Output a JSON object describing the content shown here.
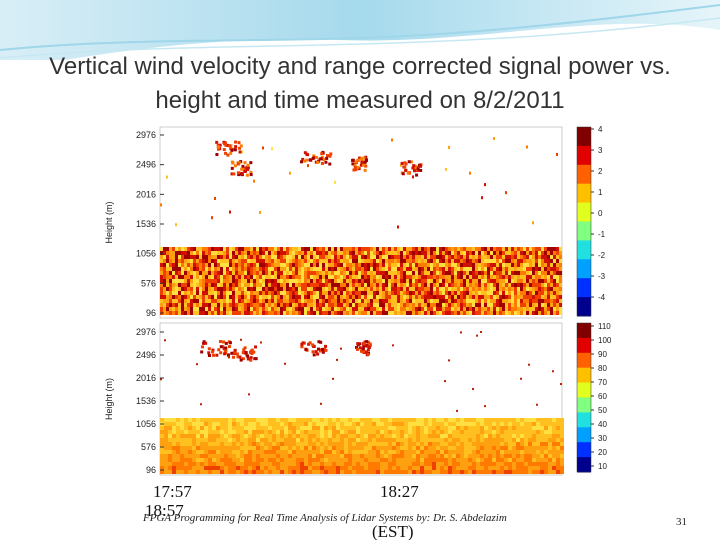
{
  "title": "Vertical wind velocity and range corrected signal power vs. height and time measured on 8/2/2011",
  "panels": [
    {
      "y_label": "Height (m)",
      "yticks": [
        2976,
        2496,
        2016,
        1536,
        1056,
        576,
        96
      ],
      "colorbar_ticks": [
        4,
        3,
        2,
        1,
        0,
        -1,
        -2,
        -3,
        -4
      ]
    },
    {
      "y_label": "Height (m)",
      "yticks": [
        2976,
        2496,
        2016,
        1536,
        1056,
        576,
        96
      ],
      "colorbar_ticks": [
        110,
        100,
        90,
        80,
        70,
        60,
        50,
        40,
        30,
        20,
        10
      ]
    }
  ],
  "x_labels": [
    "17:57",
    "18:27",
    "18:57",
    "(EST)"
  ],
  "footer": "FPGA Programming for Real Time Analysis of Lidar Systems by: Dr. S. Abdelazim",
  "page_number": "31"
}
